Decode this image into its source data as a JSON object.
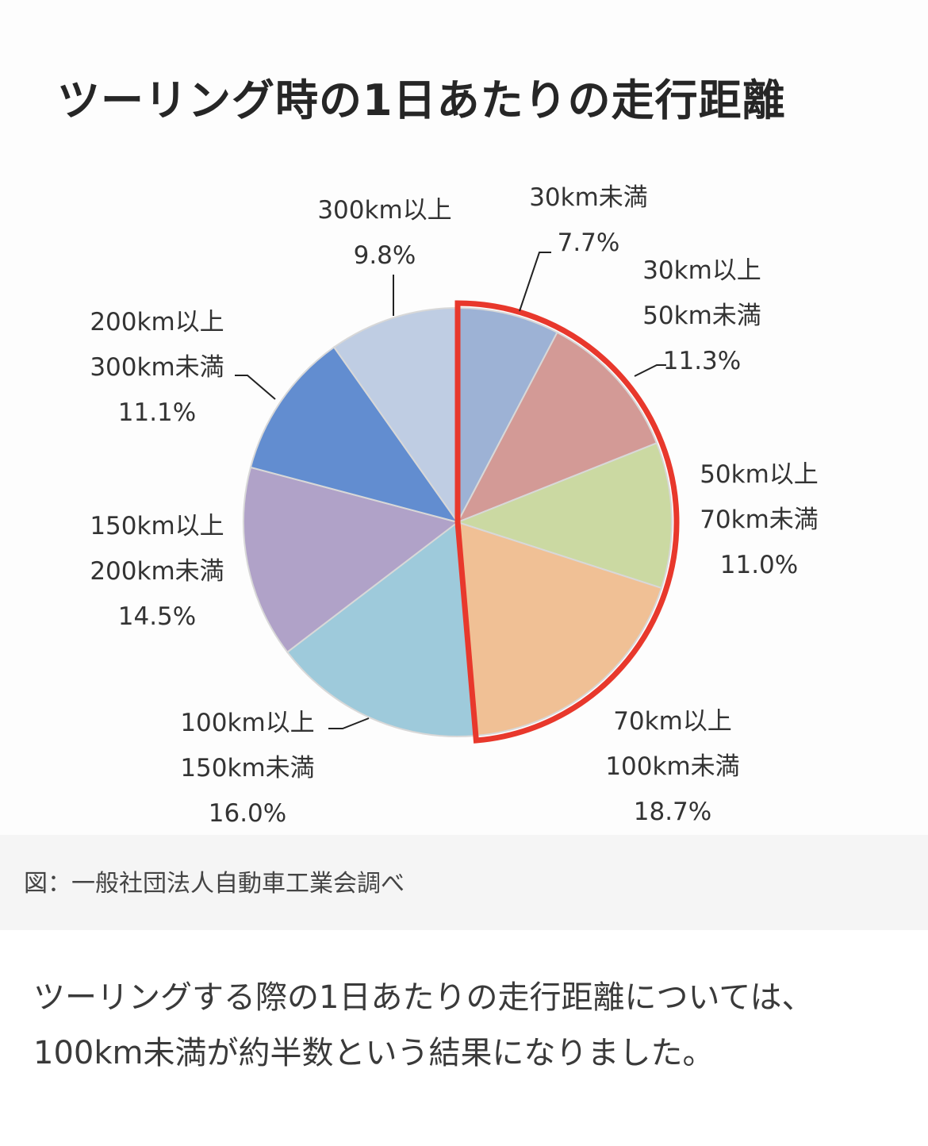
{
  "chart_data": {
    "type": "pie",
    "title": "ツーリング時の1日あたりの走行距離",
    "slices": [
      {
        "label_lines": [
          "30km未満"
        ],
        "value": 7.7,
        "value_text": "7.7%",
        "color": "#9db2d5"
      },
      {
        "label_lines": [
          "30km以上",
          "50km未満"
        ],
        "value": 11.3,
        "value_text": "11.3%",
        "color": "#d39a96"
      },
      {
        "label_lines": [
          "50km以上",
          "70km未満"
        ],
        "value": 11.0,
        "value_text": "11.0%",
        "color": "#cbd9a2"
      },
      {
        "label_lines": [
          "70km以上",
          "100km未満"
        ],
        "value": 18.7,
        "value_text": "18.7%",
        "color": "#f0c095"
      },
      {
        "label_lines": [
          "100km以上",
          "150km未満"
        ],
        "value": 16.0,
        "value_text": "16.0%",
        "color": "#9ecadb"
      },
      {
        "label_lines": [
          "150km以上",
          "200km未満"
        ],
        "value": 14.5,
        "value_text": "14.5%",
        "color": "#b0a2c8"
      },
      {
        "label_lines": [
          "200km以上",
          "300km未満"
        ],
        "value": 11.1,
        "value_text": "11.1%",
        "color": "#628dd0"
      },
      {
        "label_lines": [
          "300km以上"
        ],
        "value": 9.8,
        "value_text": "9.8%",
        "color": "#bfcde3"
      }
    ],
    "highlight": {
      "group": [
        "30km未満",
        "30km以上 50km未満",
        "50km以上 70km未満",
        "70km以上 100km未満"
      ],
      "color": "#e8382c"
    }
  },
  "caption": "図：一般社団法人自動車工業会調べ",
  "body_lines": [
    "ツーリングする際の1日あたりの走行距離については、",
    "100km未満が約半数という結果になりました。"
  ]
}
